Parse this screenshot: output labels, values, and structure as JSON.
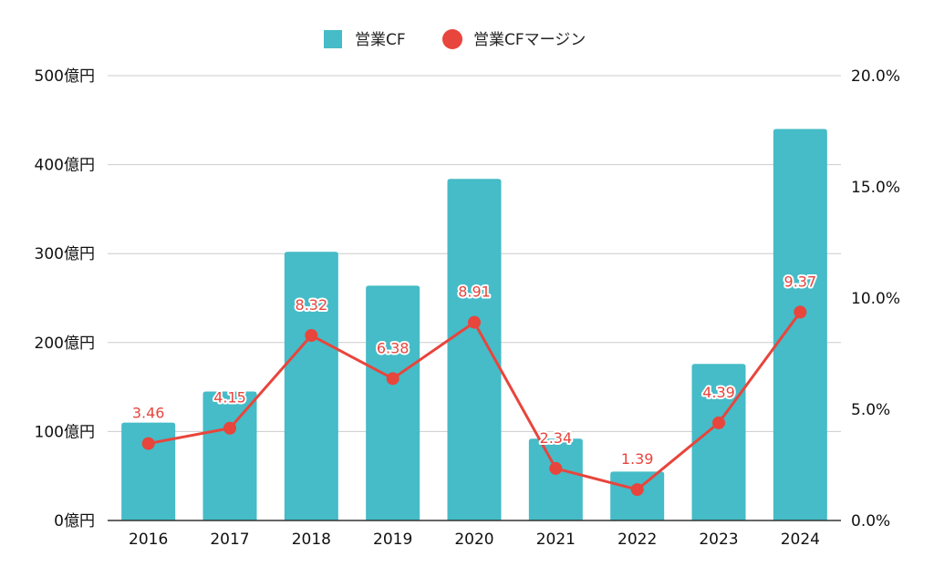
{
  "chart_data": {
    "type": "bar",
    "categories": [
      "2016",
      "2017",
      "2018",
      "2019",
      "2020",
      "2021",
      "2022",
      "2023",
      "2024"
    ],
    "series": [
      {
        "name": "営業CF",
        "type": "bar",
        "axis": "left",
        "color": "#45bcc7",
        "values": [
          110,
          145,
          302,
          264,
          384,
          92,
          55,
          176,
          440
        ]
      },
      {
        "name": "営業CFマージン",
        "type": "line",
        "axis": "right",
        "color": "#e8453c",
        "values": [
          3.46,
          4.15,
          8.32,
          6.38,
          8.91,
          2.34,
          1.39,
          4.39,
          9.37
        ],
        "labels": [
          "3.46",
          "4.15",
          "8.32",
          "6.38",
          "8.91",
          "2.34",
          "1.39",
          "4.39",
          "9.37"
        ]
      }
    ],
    "y_left": {
      "ylim": [
        0,
        500
      ],
      "ticks": [
        0,
        100,
        200,
        300,
        400,
        500
      ],
      "tick_labels": [
        "0億円",
        "100億円",
        "200億円",
        "300億円",
        "400億円",
        "500億円"
      ]
    },
    "y_right": {
      "ylim": [
        0,
        20
      ],
      "ticks": [
        0,
        5,
        10,
        15,
        20
      ],
      "tick_labels": [
        "0.0%",
        "5.0%",
        "10.0%",
        "15.0%",
        "20.0%"
      ]
    },
    "legend_position": "top-center",
    "grid": true
  }
}
